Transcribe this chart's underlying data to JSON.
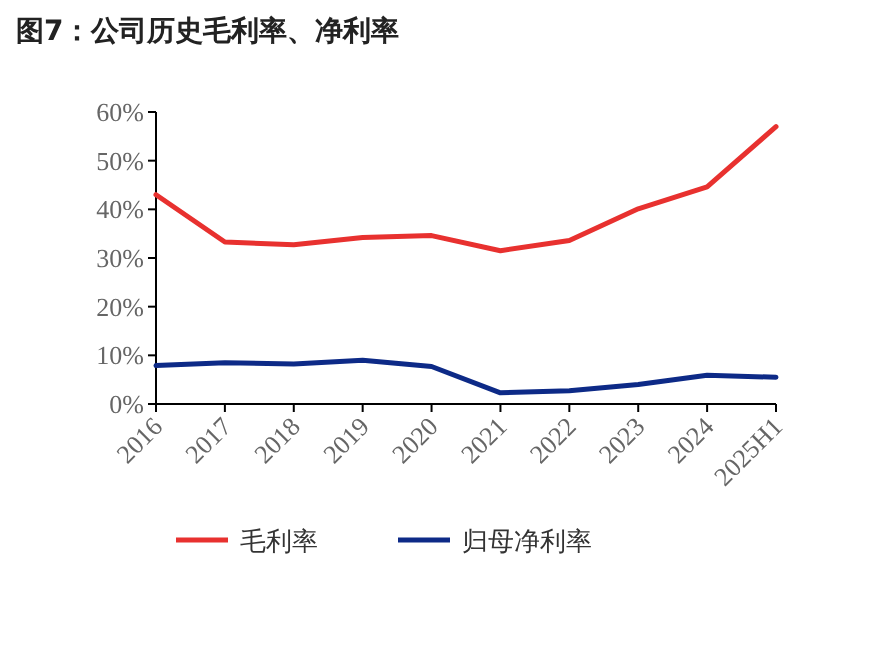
{
  "chart_data": {
    "type": "line",
    "title": "图7：公司历史毛利率、净利率",
    "categories": [
      "2016",
      "2017",
      "2018",
      "2019",
      "2020",
      "2021",
      "2022",
      "2023",
      "2024",
      "2025H1"
    ],
    "series": [
      {
        "name": "毛利率",
        "color": "#e8312f",
        "values": [
          43,
          33.3,
          32.7,
          34.2,
          34.6,
          31.5,
          33.6,
          40.1,
          44.6,
          57
        ]
      },
      {
        "name": "归母净利率",
        "color": "#0d2a87",
        "values": [
          7.9,
          8.5,
          8.2,
          9,
          7.7,
          2.3,
          2.7,
          4,
          5.9,
          5.5
        ]
      }
    ],
    "ylim": [
      0,
      60
    ],
    "yticks": [
      {
        "value": 0,
        "label": "0%"
      },
      {
        "value": 10,
        "label": "10%"
      },
      {
        "value": 20,
        "label": "20%"
      },
      {
        "value": 30,
        "label": "30%"
      },
      {
        "value": 40,
        "label": "40%"
      },
      {
        "value": 50,
        "label": "50%"
      },
      {
        "value": 60,
        "label": "60%"
      }
    ],
    "legend": "bottom",
    "grid": false,
    "marker": "none",
    "line_style": "solid"
  }
}
